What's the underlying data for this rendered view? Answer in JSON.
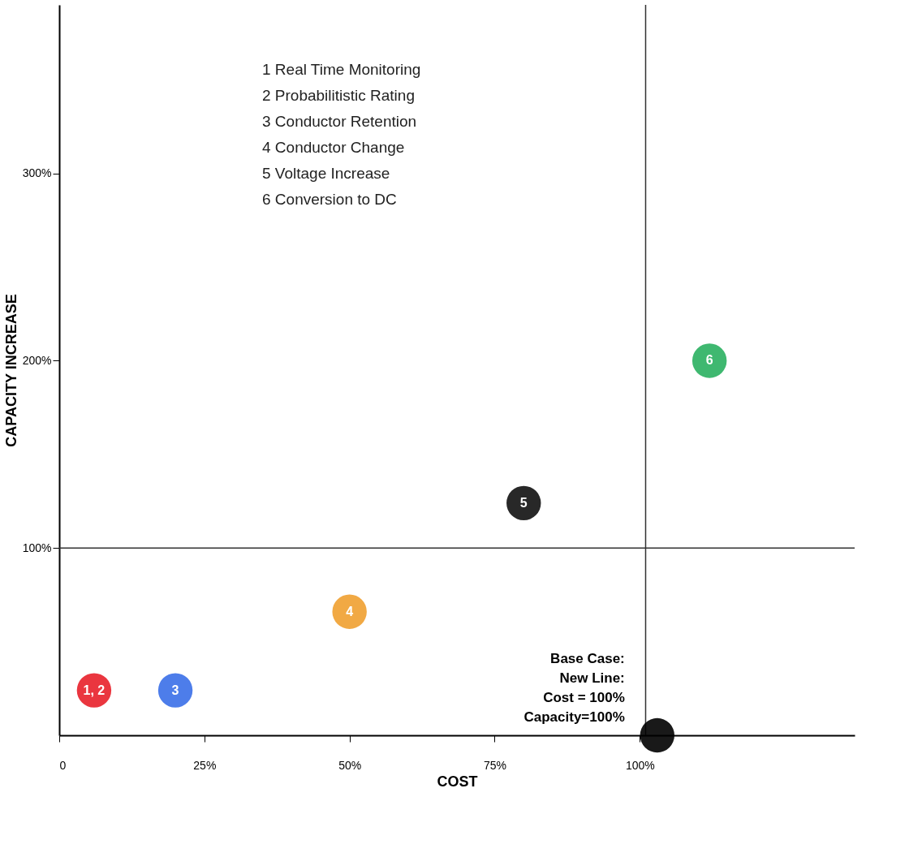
{
  "chart_data": {
    "type": "scatter",
    "xlabel": "COST",
    "ylabel": "CAPACITY INCREASE",
    "xlim": [
      0,
      137
    ],
    "ylim": [
      0,
      390
    ],
    "xticks": [
      0,
      {
        "value": 25,
        "label": "25%"
      },
      {
        "value": 50,
        "label": "50%"
      },
      {
        "value": 75,
        "label": "75%"
      },
      {
        "value": 100,
        "label": "100%"
      }
    ],
    "yticks": [
      {
        "value": 100,
        "label": "100%"
      },
      {
        "value": 200,
        "label": "200%"
      },
      {
        "value": 300,
        "label": "300%"
      }
    ],
    "grid": false,
    "legend": false,
    "marker": "circle",
    "series": [
      {
        "name": "1, 2",
        "color": "#e8202a",
        "x": [
          6
        ],
        "values": [
          24
        ]
      },
      {
        "name": "3",
        "color": "#3a6fe8",
        "x": [
          20
        ],
        "values": [
          24
        ]
      },
      {
        "name": "4",
        "color": "#f0a030",
        "x": [
          50
        ],
        "values": [
          66
        ]
      },
      {
        "name": "5",
        "color": "#111111",
        "x": [
          80
        ],
        "values": [
          124
        ]
      },
      {
        "name": "6",
        "color": "#2ab060",
        "x": [
          112
        ],
        "values": [
          200
        ]
      },
      {
        "color": "#000000",
        "x": [
          103
        ],
        "values": [
          0
        ]
      }
    ],
    "ref_lines": [
      {
        "axis": "y",
        "value": 100,
        "color": "#333333"
      },
      {
        "axis": "x",
        "value": 101,
        "color": "#333333"
      }
    ],
    "annotations": [
      "1     Real Time Monitoring",
      "2     Probabilitistic Rating",
      "3     Conductor Retention",
      "4     Conductor Change",
      "5     Voltage Increase",
      "6     Conversion to DC",
      {
        "text": "Base Case:\nNew Line:\nCost = 100%\nCapacity=100%",
        "x": 103,
        "y": 0
      }
    ]
  }
}
